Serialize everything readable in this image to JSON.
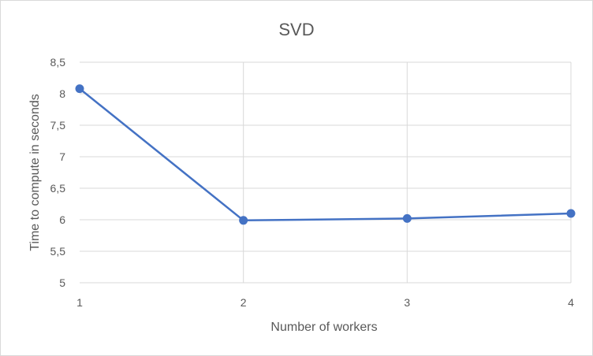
{
  "chart_data": {
    "type": "line",
    "title": "SVD",
    "xlabel": "Number of workers",
    "ylabel": "Time to compute in seconds",
    "x": [
      1,
      2,
      3,
      4
    ],
    "x_tick_labels": [
      "1",
      "2",
      "3",
      "4"
    ],
    "y_tick_labels": [
      "5",
      "5,5",
      "6",
      "6,5",
      "7",
      "7,5",
      "8",
      "8,5"
    ],
    "y_ticks": [
      5,
      5.5,
      6,
      6.5,
      7,
      7.5,
      8,
      8.5
    ],
    "ylim": [
      5,
      8.5
    ],
    "xlim": [
      1,
      4
    ],
    "grid": true,
    "series": [
      {
        "values": [
          8.08,
          5.99,
          6.02,
          6.1
        ],
        "color": "#4472c4"
      }
    ]
  }
}
